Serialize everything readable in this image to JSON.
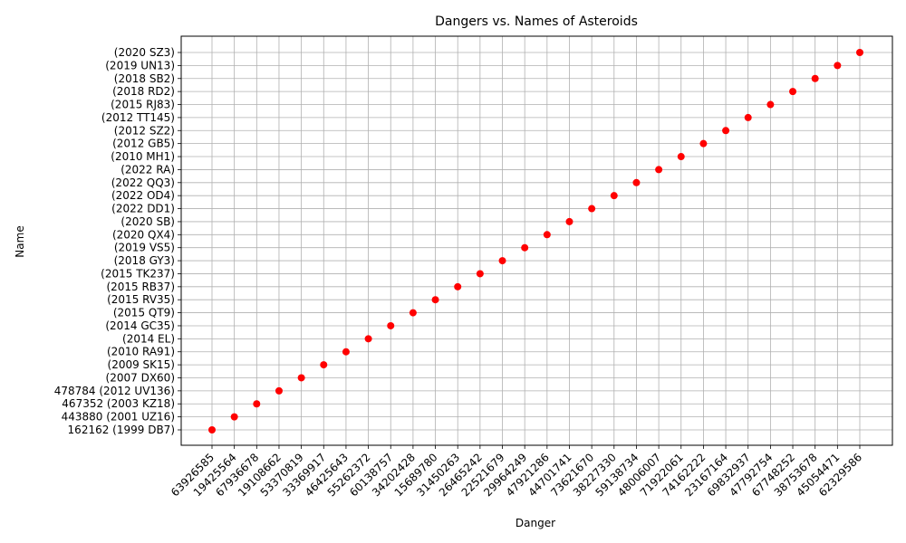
{
  "chart_data": {
    "type": "scatter",
    "title": "Dangers vs. Names of Asteroids",
    "xlabel": "Danger",
    "ylabel": "Name",
    "grid": true,
    "marker_color": "#ff0000",
    "x": [
      "63926585",
      "19425564",
      "67936678",
      "19108662",
      "53370819",
      "33369917",
      "46425643",
      "55262372",
      "60138757",
      "34202428",
      "15689780",
      "31450263",
      "26465242",
      "22521679",
      "29964249",
      "47921286",
      "44701741",
      "73621670",
      "38227330",
      "59138734",
      "48006007",
      "71922061",
      "74162222",
      "23167164",
      "69832937",
      "47792754",
      "67748252",
      "38753678",
      "45054471",
      "62329586"
    ],
    "y": [
      "162162 (1999 DB7)",
      "443880 (2001 UZ16)",
      "467352 (2003 KZ18)",
      "478784 (2012 UV136)",
      "(2007 DX60)",
      "(2009 SK15)",
      "(2010 RA91)",
      "(2014 EL)",
      "(2014 GC35)",
      "(2015 QT9)",
      "(2015 RV35)",
      "(2015 RB37)",
      "(2015 TK237)",
      "(2018 GY3)",
      "(2019 VS5)",
      "(2020 QX4)",
      "(2020 SB)",
      "(2022 DD1)",
      "(2022 OD4)",
      "(2022 QQ3)",
      "(2022 RA)",
      "(2010 MH1)",
      "(2012 GB5)",
      "(2012 SZ2)",
      "(2012 TT145)",
      "(2015 RJ83)",
      "(2018 RD2)",
      "(2018 SB2)",
      "(2019 UN13)",
      "(2020 SZ3)"
    ]
  }
}
